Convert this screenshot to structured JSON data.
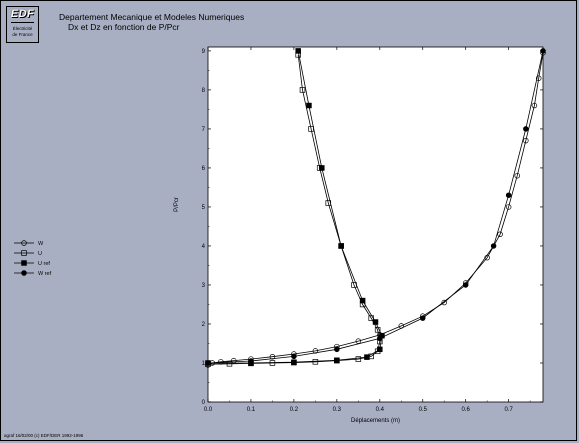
{
  "header": {
    "logo_brand": "EDF",
    "logo_sub1": "Électricité",
    "logo_sub2": "de France",
    "department": "Departement Mecanique et Modeles Numeriques",
    "subtitle": "Dx et Dz en fonction de P/Pcr"
  },
  "footer": {
    "credit": "agraf 16/02/00 (c) EDF/DER 1992-1996"
  },
  "chart_data": {
    "type": "line",
    "title": "Dx et Dz en fonction de P/Pcr",
    "xlabel": "Déplacements (m)",
    "ylabel": "P/Pcr",
    "xlim": [
      0,
      0.78
    ],
    "ylim": [
      0,
      9.1
    ],
    "x_ticks": [
      "0.0",
      "0.1",
      "0.2",
      "0.3",
      "0.4",
      "0.5",
      "0.6",
      "0.7"
    ],
    "y_ticks": [
      "0",
      "1",
      "2",
      "3",
      "4",
      "5",
      "6",
      "7",
      "8",
      "9"
    ],
    "grid": false,
    "legend_position": "left",
    "series": [
      {
        "name": "W",
        "marker": "circle-open",
        "points": [
          [
            0.0,
            0.95
          ],
          [
            0.01,
            1.0
          ],
          [
            0.03,
            1.03
          ],
          [
            0.06,
            1.06
          ],
          [
            0.1,
            1.1
          ],
          [
            0.15,
            1.16
          ],
          [
            0.2,
            1.23
          ],
          [
            0.25,
            1.31
          ],
          [
            0.3,
            1.42
          ],
          [
            0.35,
            1.56
          ],
          [
            0.4,
            1.72
          ],
          [
            0.45,
            1.95
          ],
          [
            0.5,
            2.2
          ],
          [
            0.55,
            2.55
          ],
          [
            0.6,
            3.05
          ],
          [
            0.65,
            3.7
          ],
          [
            0.68,
            4.3
          ],
          [
            0.7,
            5.0
          ],
          [
            0.72,
            5.8
          ],
          [
            0.74,
            6.7
          ],
          [
            0.76,
            7.6
          ],
          [
            0.77,
            8.3
          ],
          [
            0.78,
            8.95
          ]
        ]
      },
      {
        "name": "U",
        "marker": "square-open",
        "points": [
          [
            0.0,
            0.97
          ],
          [
            0.05,
            0.98
          ],
          [
            0.1,
            0.99
          ],
          [
            0.15,
            1.0
          ],
          [
            0.2,
            1.01
          ],
          [
            0.25,
            1.03
          ],
          [
            0.3,
            1.06
          ],
          [
            0.35,
            1.1
          ],
          [
            0.38,
            1.17
          ],
          [
            0.395,
            1.3
          ],
          [
            0.4,
            1.55
          ],
          [
            0.395,
            1.85
          ],
          [
            0.38,
            2.15
          ],
          [
            0.36,
            2.5
          ],
          [
            0.34,
            3.0
          ],
          [
            0.31,
            4.0
          ],
          [
            0.28,
            5.1
          ],
          [
            0.26,
            6.0
          ],
          [
            0.24,
            7.0
          ],
          [
            0.22,
            8.0
          ],
          [
            0.21,
            8.9
          ]
        ]
      },
      {
        "name": "U ref",
        "marker": "square-filled",
        "points": [
          [
            0.0,
            1.0
          ],
          [
            0.1,
            1.0
          ],
          [
            0.2,
            1.02
          ],
          [
            0.3,
            1.07
          ],
          [
            0.37,
            1.15
          ],
          [
            0.4,
            1.35
          ],
          [
            0.405,
            1.7
          ],
          [
            0.39,
            2.05
          ],
          [
            0.36,
            2.6
          ],
          [
            0.31,
            4.0
          ],
          [
            0.265,
            6.0
          ],
          [
            0.235,
            7.6
          ],
          [
            0.21,
            9.0
          ]
        ]
      },
      {
        "name": "W ref",
        "marker": "circle-filled",
        "points": [
          [
            0.0,
            1.0
          ],
          [
            0.1,
            1.05
          ],
          [
            0.2,
            1.17
          ],
          [
            0.3,
            1.35
          ],
          [
            0.4,
            1.63
          ],
          [
            0.5,
            2.15
          ],
          [
            0.6,
            3.0
          ],
          [
            0.665,
            4.0
          ],
          [
            0.7,
            5.3
          ],
          [
            0.74,
            7.0
          ],
          [
            0.78,
            9.0
          ]
        ]
      }
    ]
  }
}
